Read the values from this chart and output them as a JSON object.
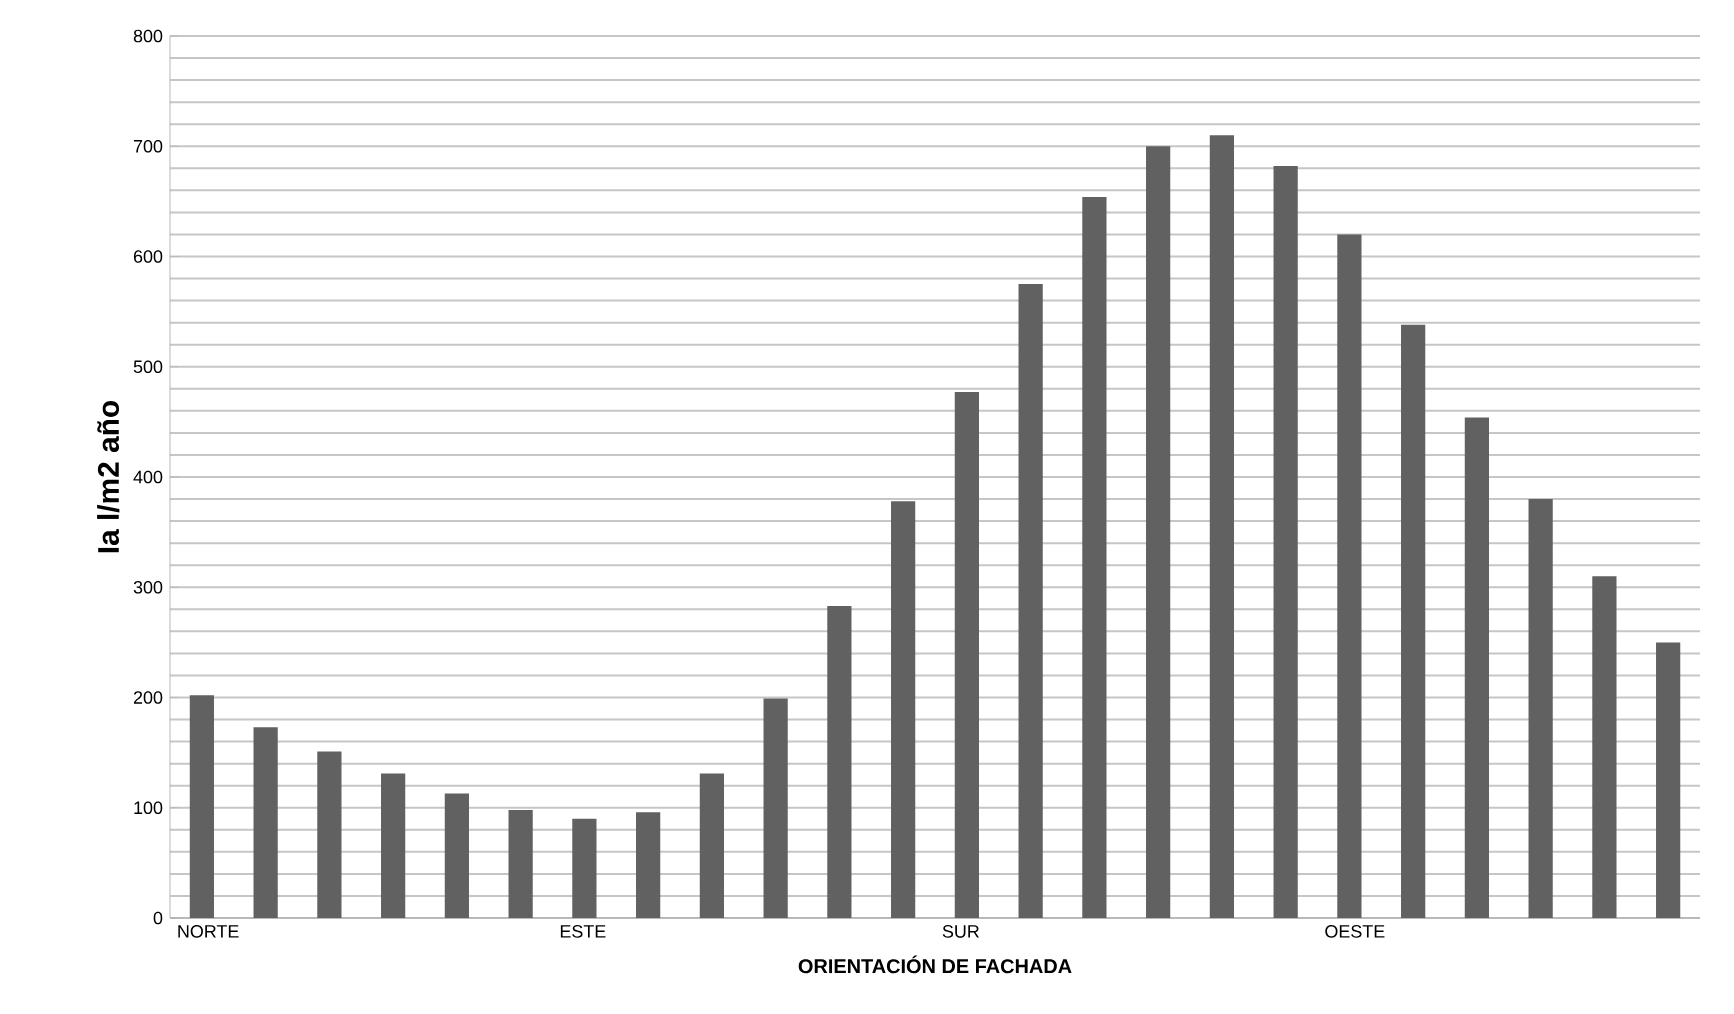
{
  "chart_data": {
    "type": "bar",
    "xlabel": "ORIENTACIÓN DE FACHADA",
    "ylabel": "Ia l/m2 año",
    "categories": [
      "NORTE",
      null,
      null,
      null,
      null,
      null,
      "ESTE",
      null,
      null,
      null,
      null,
      null,
      "SUR",
      null,
      null,
      null,
      null,
      null,
      "OESTE",
      null,
      null,
      null,
      null,
      null
    ],
    "values": [
      202,
      173,
      151,
      131,
      113,
      98,
      90,
      96,
      131,
      199,
      283,
      378,
      477,
      575,
      654,
      700,
      710,
      682,
      620,
      538,
      454,
      380,
      310,
      250
    ],
    "color": "#616161",
    "ylim": [
      0,
      800
    ],
    "yticks": [
      0,
      100,
      200,
      300,
      400,
      500,
      600,
      700,
      800
    ],
    "grid": "y"
  }
}
